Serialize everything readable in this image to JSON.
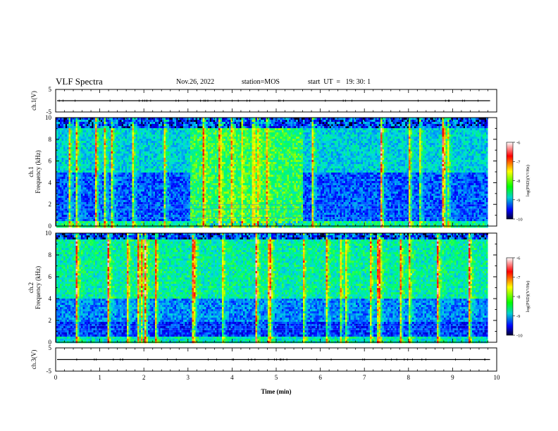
{
  "header": {
    "title": "VLF Spectra",
    "date": "Nov.26, 2022",
    "station": "station=MOS",
    "start": "start  UT  =   19: 30: 1"
  },
  "colors": {
    "frame": "#000000",
    "background": "#ffffff",
    "spectrogram_base": "#000030",
    "colorbar_stops": [
      "#ffffff",
      "#ff0000",
      "#ffff00",
      "#00ff00",
      "#00e0e0",
      "#0000ff",
      "#000033"
    ]
  },
  "chart_data": [
    {
      "type": "line",
      "panel": "ch1-waveform",
      "ylabel": "ch.1(V)",
      "ylim": [
        -5,
        5
      ],
      "yticks": [
        "5",
        "-5"
      ],
      "xlim": [
        0,
        10
      ],
      "series": [
        {
          "baseline": 0,
          "description_values": [
            0,
            0
          ]
        }
      ]
    },
    {
      "type": "heatmap",
      "panel": "ch1-spectrogram",
      "ylabel": "Frequency (kHz)",
      "channel_label": "ch.1",
      "ylim": [
        0,
        10
      ],
      "yticks": [
        "0",
        "2",
        "4",
        "6",
        "8",
        "10"
      ],
      "xlim": [
        0,
        10
      ],
      "colorbar": {
        "label": "log(PSD)(V²/Hz)",
        "range": [
          -10,
          -6
        ],
        "ticks": [
          "-6",
          "-7",
          "-8",
          "-9",
          "-10"
        ]
      },
      "data_end_min": 9.8,
      "band_top_khz": 9.0,
      "enhanced_interval_min": [
        3.05,
        5.6
      ]
    },
    {
      "type": "heatmap",
      "panel": "ch2-spectrogram",
      "ylabel": "Frequency (kHz)",
      "channel_label": "ch.2",
      "ylim": [
        0,
        10
      ],
      "yticks": [
        "0",
        "2",
        "4",
        "6",
        "8",
        "10"
      ],
      "xlim": [
        0,
        10
      ],
      "colorbar": {
        "label": "log(PSD)(V²/Hz)",
        "range": [
          -10,
          -6
        ],
        "ticks": [
          "-6",
          "-7",
          "-8",
          "-9",
          "-10"
        ]
      },
      "data_end_min": 9.8,
      "band_top_khz": 9.5
    },
    {
      "type": "line",
      "panel": "ch3-waveform",
      "ylabel": "ch.3(V)",
      "ylim": [
        -5,
        5
      ],
      "yticks": [
        "5",
        "-5"
      ],
      "xlim": [
        0,
        10
      ],
      "xlabel": "Time  (min)",
      "xticks": [
        "0",
        "1",
        "2",
        "3",
        "4",
        "5",
        "6",
        "7",
        "8",
        "9",
        "10"
      ],
      "series": [
        {
          "baseline": 0,
          "description_values": [
            0,
            0
          ]
        }
      ]
    }
  ]
}
